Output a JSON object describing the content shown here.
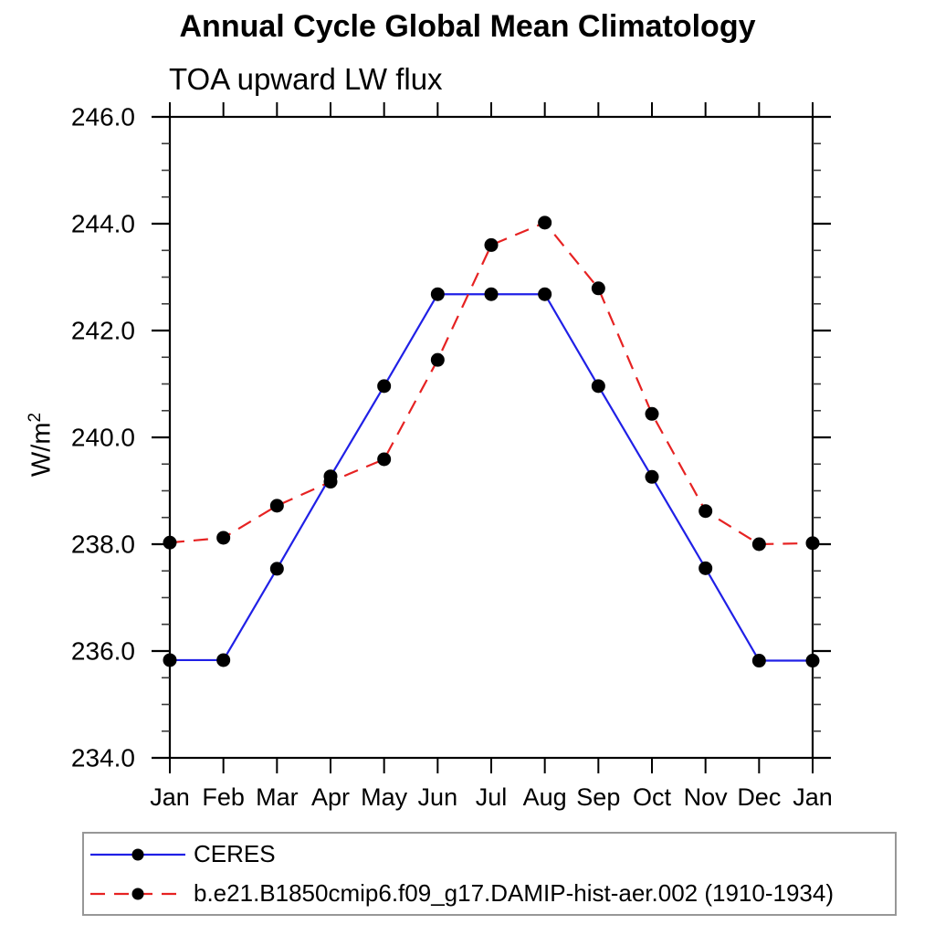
{
  "page": {
    "background_color": "#ffffff"
  },
  "chart_data": {
    "type": "line",
    "title": "Annual Cycle Global Mean Climatology",
    "subtitle": "TOA upward LW flux",
    "ylabel_base": "W/m",
    "ylabel_exponent": "2",
    "categories": [
      "Jan",
      "Feb",
      "Mar",
      "Apr",
      "May",
      "Jun",
      "Jul",
      "Aug",
      "Sep",
      "Oct",
      "Nov",
      "Dec",
      "Jan"
    ],
    "ylim": [
      234.0,
      246.0
    ],
    "ytick_major_step": 2.0,
    "ytick_minor_step": 0.5,
    "ytick_labels": [
      "234.0",
      "236.0",
      "238.0",
      "240.0",
      "242.0",
      "244.0",
      "246.0"
    ],
    "grid": false,
    "legend_position": "bottom-left",
    "axis_color": "#000000",
    "marker_color": "#000000",
    "series": [
      {
        "id": "ceres",
        "name": "CERES",
        "color": "#2020e6",
        "line_style": "solid",
        "marker": "circle",
        "values": [
          235.83,
          235.83,
          237.54,
          239.27,
          240.96,
          242.68,
          242.68,
          242.68,
          240.96,
          239.26,
          237.55,
          235.82,
          235.82
        ]
      },
      {
        "id": "damip-hist-aer",
        "name": "b.e21.B1850cmip6.f09_g17.DAMIP-hist-aer.002 (1910-1934)",
        "color": "#e62222",
        "line_style": "dashed",
        "marker": "circle",
        "values": [
          238.03,
          238.12,
          238.72,
          239.17,
          239.59,
          241.45,
          243.6,
          244.02,
          242.79,
          240.44,
          238.62,
          238.0,
          238.02
        ]
      }
    ]
  }
}
